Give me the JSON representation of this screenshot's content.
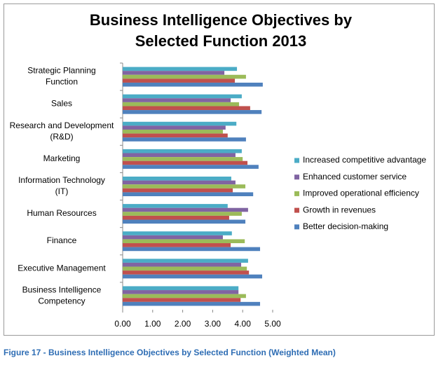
{
  "chart_data": {
    "type": "bar",
    "orientation": "horizontal",
    "title": "Business Intelligence Objectives by Selected Function 2013",
    "caption": "Figure 17 - Business Intelligence Objectives by Selected Function (Weighted Mean)",
    "categories": [
      "Strategic Planning Function",
      "Sales",
      "Research and Development (R&D)",
      "Marketing",
      "Information Technology (IT)",
      "Human Resources",
      "Finance",
      "Executive Management",
      "Business Intelligence Competency"
    ],
    "series": [
      {
        "name": "Increased competitive advantage",
        "color": "#4bacc6",
        "values": [
          3.81,
          3.97,
          3.79,
          3.97,
          3.62,
          3.5,
          3.64,
          4.18,
          3.86
        ]
      },
      {
        "name": "Enhanced customer service",
        "color": "#8064a2",
        "values": [
          3.39,
          3.6,
          3.43,
          3.76,
          3.76,
          4.18,
          3.34,
          3.95,
          3.86
        ]
      },
      {
        "name": "Improved operational efficiency",
        "color": "#9bbb59",
        "values": [
          4.11,
          3.88,
          3.34,
          4.0,
          4.09,
          3.97,
          4.07,
          4.14,
          4.11
        ]
      },
      {
        "name": "Growth in revenues",
        "color": "#c0504d",
        "values": [
          3.74,
          4.25,
          3.5,
          4.16,
          3.67,
          3.55,
          3.6,
          4.21,
          3.93
        ]
      },
      {
        "name": "Better decision-making",
        "color": "#4f81bd",
        "values": [
          4.67,
          4.63,
          4.11,
          4.53,
          4.35,
          4.09,
          4.58,
          4.65,
          4.58
        ]
      }
    ],
    "xlim": [
      0,
      5
    ],
    "xticks": [
      {
        "value": 0,
        "label": "0.00"
      },
      {
        "value": 1,
        "label": "1.00"
      },
      {
        "value": 2,
        "label": "2.00"
      },
      {
        "value": 3,
        "label": "3.00"
      },
      {
        "value": 4,
        "label": "4.00"
      },
      {
        "value": 5,
        "label": "5.00"
      }
    ],
    "legend": "right"
  }
}
